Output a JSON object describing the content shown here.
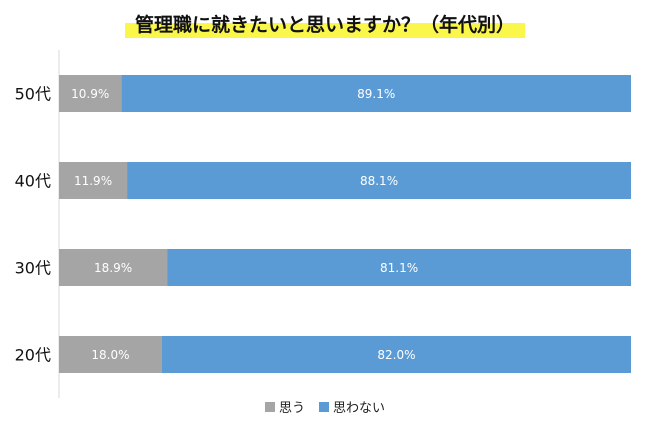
{
  "chart_data": {
    "type": "bar",
    "orientation": "horizontal",
    "stacked": true,
    "percent": true,
    "title": "管理職に就きたいと思いますか？（年代別）",
    "categories": [
      "50代",
      "40代",
      "30代",
      "20代"
    ],
    "series": [
      {
        "name": "思う",
        "color": "#a5a5a5",
        "values": [
          10.9,
          11.9,
          18.9,
          18.0
        ],
        "labels": [
          "10.9%",
          "11.9%",
          "18.9%",
          "18.0%"
        ]
      },
      {
        "name": "思わない",
        "color": "#5b9bd5",
        "values": [
          89.1,
          88.1,
          81.1,
          82.0
        ],
        "labels": [
          "89.1%",
          "88.1%",
          "81.1%",
          "82.0%"
        ]
      }
    ],
    "xlim": [
      0,
      100
    ],
    "legend_position": "bottom",
    "grid": false
  }
}
